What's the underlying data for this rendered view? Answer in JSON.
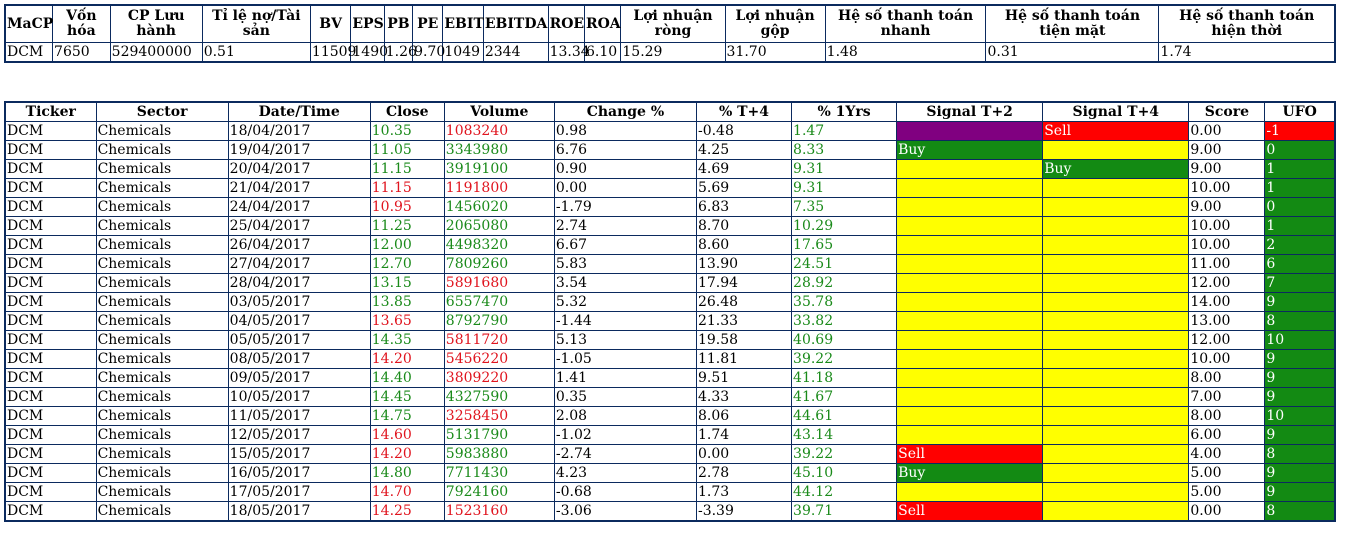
{
  "colors": {
    "up": "#1a8a1a",
    "down": "#e0141e",
    "buy_bg": "#138a13",
    "sell_bg": "#ff0000",
    "neutral_bg": "#ffff00",
    "special_bg": "#800080"
  },
  "info": {
    "headers": [
      "MaCP",
      "Vốn hóa",
      "CP Lưu hành",
      "Tỉ lệ nợ/Tài sản",
      "BV",
      "EPS",
      "PB",
      "PE",
      "EBIT",
      "EBITDA",
      "ROE",
      "ROA",
      "Lợi nhuận ròng",
      "Lợi nhuận gộp",
      "Hệ số thanh toán nhanh",
      "Hệ số thanh toán tiện mặt",
      "Hệ số thanh toán hiện thời"
    ],
    "values": [
      "DCM",
      "7650",
      "529400000",
      "0.51",
      "11509",
      "1490",
      "1.26",
      "9.70",
      "1049",
      "2344",
      "13.34",
      "6.10",
      "15.29",
      "31.70",
      "1.48",
      "0.31",
      "1.74"
    ]
  },
  "main": {
    "headers": [
      "Ticker",
      "Sector",
      "Date/Time",
      "Close",
      "Volume",
      "Change %",
      "% T+4",
      "% 1Yrs",
      "Signal T+2",
      "Signal T+4",
      "Score",
      "UFO"
    ],
    "rows": [
      {
        "ticker": "DCM",
        "sector": "Chemicals",
        "date": "18/04/2017",
        "close": "10.35",
        "close_dir": "up",
        "volume": "1083240",
        "volume_dir": "down",
        "change": "0.98",
        "t4": "-0.48",
        "y1": "1.47",
        "y1_dir": "up",
        "sig2": "",
        "sig2_bg": "purple",
        "sig4": "Sell",
        "sig4_bg": "red",
        "score": "0.00",
        "ufo": "-1",
        "ufo_bg": "red"
      },
      {
        "ticker": "DCM",
        "sector": "Chemicals",
        "date": "19/04/2017",
        "close": "11.05",
        "close_dir": "up",
        "volume": "3343980",
        "volume_dir": "up",
        "change": "6.76",
        "t4": "4.25",
        "y1": "8.33",
        "y1_dir": "up",
        "sig2": "Buy",
        "sig2_bg": "green",
        "sig4": "",
        "sig4_bg": "yellow",
        "score": "9.00",
        "ufo": "0",
        "ufo_bg": "green"
      },
      {
        "ticker": "DCM",
        "sector": "Chemicals",
        "date": "20/04/2017",
        "close": "11.15",
        "close_dir": "up",
        "volume": "3919100",
        "volume_dir": "up",
        "change": "0.90",
        "t4": "4.69",
        "y1": "9.31",
        "y1_dir": "up",
        "sig2": "",
        "sig2_bg": "yellow",
        "sig4": "Buy",
        "sig4_bg": "green",
        "score": "9.00",
        "ufo": "1",
        "ufo_bg": "green"
      },
      {
        "ticker": "DCM",
        "sector": "Chemicals",
        "date": "21/04/2017",
        "close": "11.15",
        "close_dir": "down",
        "volume": "1191800",
        "volume_dir": "down",
        "change": "0.00",
        "t4": "5.69",
        "y1": "9.31",
        "y1_dir": "up",
        "sig2": "",
        "sig2_bg": "yellow",
        "sig4": "",
        "sig4_bg": "yellow",
        "score": "10.00",
        "ufo": "1",
        "ufo_bg": "green"
      },
      {
        "ticker": "DCM",
        "sector": "Chemicals",
        "date": "24/04/2017",
        "close": "10.95",
        "close_dir": "down",
        "volume": "1456020",
        "volume_dir": "up",
        "change": "-1.79",
        "t4": "6.83",
        "y1": "7.35",
        "y1_dir": "up",
        "sig2": "",
        "sig2_bg": "yellow",
        "sig4": "",
        "sig4_bg": "yellow",
        "score": "9.00",
        "ufo": "0",
        "ufo_bg": "green"
      },
      {
        "ticker": "DCM",
        "sector": "Chemicals",
        "date": "25/04/2017",
        "close": "11.25",
        "close_dir": "up",
        "volume": "2065080",
        "volume_dir": "up",
        "change": "2.74",
        "t4": "8.70",
        "y1": "10.29",
        "y1_dir": "up",
        "sig2": "",
        "sig2_bg": "yellow",
        "sig4": "",
        "sig4_bg": "yellow",
        "score": "10.00",
        "ufo": "1",
        "ufo_bg": "green"
      },
      {
        "ticker": "DCM",
        "sector": "Chemicals",
        "date": "26/04/2017",
        "close": "12.00",
        "close_dir": "up",
        "volume": "4498320",
        "volume_dir": "up",
        "change": "6.67",
        "t4": "8.60",
        "y1": "17.65",
        "y1_dir": "up",
        "sig2": "",
        "sig2_bg": "yellow",
        "sig4": "",
        "sig4_bg": "yellow",
        "score": "10.00",
        "ufo": "2",
        "ufo_bg": "green"
      },
      {
        "ticker": "DCM",
        "sector": "Chemicals",
        "date": "27/04/2017",
        "close": "12.70",
        "close_dir": "up",
        "volume": "7809260",
        "volume_dir": "up",
        "change": "5.83",
        "t4": "13.90",
        "y1": "24.51",
        "y1_dir": "up",
        "sig2": "",
        "sig2_bg": "yellow",
        "sig4": "",
        "sig4_bg": "yellow",
        "score": "11.00",
        "ufo": "6",
        "ufo_bg": "green"
      },
      {
        "ticker": "DCM",
        "sector": "Chemicals",
        "date": "28/04/2017",
        "close": "13.15",
        "close_dir": "up",
        "volume": "5891680",
        "volume_dir": "down",
        "change": "3.54",
        "t4": "17.94",
        "y1": "28.92",
        "y1_dir": "up",
        "sig2": "",
        "sig2_bg": "yellow",
        "sig4": "",
        "sig4_bg": "yellow",
        "score": "12.00",
        "ufo": "7",
        "ufo_bg": "green"
      },
      {
        "ticker": "DCM",
        "sector": "Chemicals",
        "date": "03/05/2017",
        "close": "13.85",
        "close_dir": "up",
        "volume": "6557470",
        "volume_dir": "up",
        "change": "5.32",
        "t4": "26.48",
        "y1": "35.78",
        "y1_dir": "up",
        "sig2": "",
        "sig2_bg": "yellow",
        "sig4": "",
        "sig4_bg": "yellow",
        "score": "14.00",
        "ufo": "9",
        "ufo_bg": "green"
      },
      {
        "ticker": "DCM",
        "sector": "Chemicals",
        "date": "04/05/2017",
        "close": "13.65",
        "close_dir": "down",
        "volume": "8792790",
        "volume_dir": "up",
        "change": "-1.44",
        "t4": "21.33",
        "y1": "33.82",
        "y1_dir": "up",
        "sig2": "",
        "sig2_bg": "yellow",
        "sig4": "",
        "sig4_bg": "yellow",
        "score": "13.00",
        "ufo": "8",
        "ufo_bg": "green"
      },
      {
        "ticker": "DCM",
        "sector": "Chemicals",
        "date": "05/05/2017",
        "close": "14.35",
        "close_dir": "up",
        "volume": "5811720",
        "volume_dir": "down",
        "change": "5.13",
        "t4": "19.58",
        "y1": "40.69",
        "y1_dir": "up",
        "sig2": "",
        "sig2_bg": "yellow",
        "sig4": "",
        "sig4_bg": "yellow",
        "score": "12.00",
        "ufo": "10",
        "ufo_bg": "green"
      },
      {
        "ticker": "DCM",
        "sector": "Chemicals",
        "date": "08/05/2017",
        "close": "14.20",
        "close_dir": "down",
        "volume": "5456220",
        "volume_dir": "down",
        "change": "-1.05",
        "t4": "11.81",
        "y1": "39.22",
        "y1_dir": "up",
        "sig2": "",
        "sig2_bg": "yellow",
        "sig4": "",
        "sig4_bg": "yellow",
        "score": "10.00",
        "ufo": "9",
        "ufo_bg": "green"
      },
      {
        "ticker": "DCM",
        "sector": "Chemicals",
        "date": "09/05/2017",
        "close": "14.40",
        "close_dir": "up",
        "volume": "3809220",
        "volume_dir": "down",
        "change": "1.41",
        "t4": "9.51",
        "y1": "41.18",
        "y1_dir": "up",
        "sig2": "",
        "sig2_bg": "yellow",
        "sig4": "",
        "sig4_bg": "yellow",
        "score": "8.00",
        "ufo": "9",
        "ufo_bg": "green"
      },
      {
        "ticker": "DCM",
        "sector": "Chemicals",
        "date": "10/05/2017",
        "close": "14.45",
        "close_dir": "up",
        "volume": "4327590",
        "volume_dir": "up",
        "change": "0.35",
        "t4": "4.33",
        "y1": "41.67",
        "y1_dir": "up",
        "sig2": "",
        "sig2_bg": "yellow",
        "sig4": "",
        "sig4_bg": "yellow",
        "score": "7.00",
        "ufo": "9",
        "ufo_bg": "green"
      },
      {
        "ticker": "DCM",
        "sector": "Chemicals",
        "date": "11/05/2017",
        "close": "14.75",
        "close_dir": "up",
        "volume": "3258450",
        "volume_dir": "down",
        "change": "2.08",
        "t4": "8.06",
        "y1": "44.61",
        "y1_dir": "up",
        "sig2": "",
        "sig2_bg": "yellow",
        "sig4": "",
        "sig4_bg": "yellow",
        "score": "8.00",
        "ufo": "10",
        "ufo_bg": "green"
      },
      {
        "ticker": "DCM",
        "sector": "Chemicals",
        "date": "12/05/2017",
        "close": "14.60",
        "close_dir": "down",
        "volume": "5131790",
        "volume_dir": "up",
        "change": "-1.02",
        "t4": "1.74",
        "y1": "43.14",
        "y1_dir": "up",
        "sig2": "",
        "sig2_bg": "yellow",
        "sig4": "",
        "sig4_bg": "yellow",
        "score": "6.00",
        "ufo": "9",
        "ufo_bg": "green"
      },
      {
        "ticker": "DCM",
        "sector": "Chemicals",
        "date": "15/05/2017",
        "close": "14.20",
        "close_dir": "down",
        "volume": "5983880",
        "volume_dir": "up",
        "change": "-2.74",
        "t4": "0.00",
        "y1": "39.22",
        "y1_dir": "up",
        "sig2": "Sell",
        "sig2_bg": "red",
        "sig4": "",
        "sig4_bg": "yellow",
        "score": "4.00",
        "ufo": "8",
        "ufo_bg": "green"
      },
      {
        "ticker": "DCM",
        "sector": "Chemicals",
        "date": "16/05/2017",
        "close": "14.80",
        "close_dir": "up",
        "volume": "7711430",
        "volume_dir": "up",
        "change": "4.23",
        "t4": "2.78",
        "y1": "45.10",
        "y1_dir": "up",
        "sig2": "Buy",
        "sig2_bg": "green",
        "sig4": "",
        "sig4_bg": "yellow",
        "score": "5.00",
        "ufo": "9",
        "ufo_bg": "green"
      },
      {
        "ticker": "DCM",
        "sector": "Chemicals",
        "date": "17/05/2017",
        "close": "14.70",
        "close_dir": "down",
        "volume": "7924160",
        "volume_dir": "up",
        "change": "-0.68",
        "t4": "1.73",
        "y1": "44.12",
        "y1_dir": "up",
        "sig2": "",
        "sig2_bg": "yellow",
        "sig4": "",
        "sig4_bg": "yellow",
        "score": "5.00",
        "ufo": "9",
        "ufo_bg": "green"
      },
      {
        "ticker": "DCM",
        "sector": "Chemicals",
        "date": "18/05/2017",
        "close": "14.25",
        "close_dir": "down",
        "volume": "1523160",
        "volume_dir": "down",
        "change": "-3.06",
        "t4": "-3.39",
        "y1": "39.71",
        "y1_dir": "up",
        "sig2": "Sell",
        "sig2_bg": "red",
        "sig4": "",
        "sig4_bg": "yellow",
        "score": "0.00",
        "ufo": "8",
        "ufo_bg": "green"
      }
    ]
  }
}
